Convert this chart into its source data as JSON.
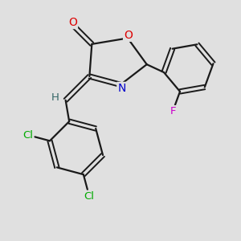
{
  "bg_color": "#e0e0e0",
  "bond_color": "#1a1a1a",
  "atom_colors": {
    "O": "#dd0000",
    "N": "#0000cc",
    "Cl": "#00aa00",
    "F": "#cc00cc",
    "H": "#336666"
  }
}
